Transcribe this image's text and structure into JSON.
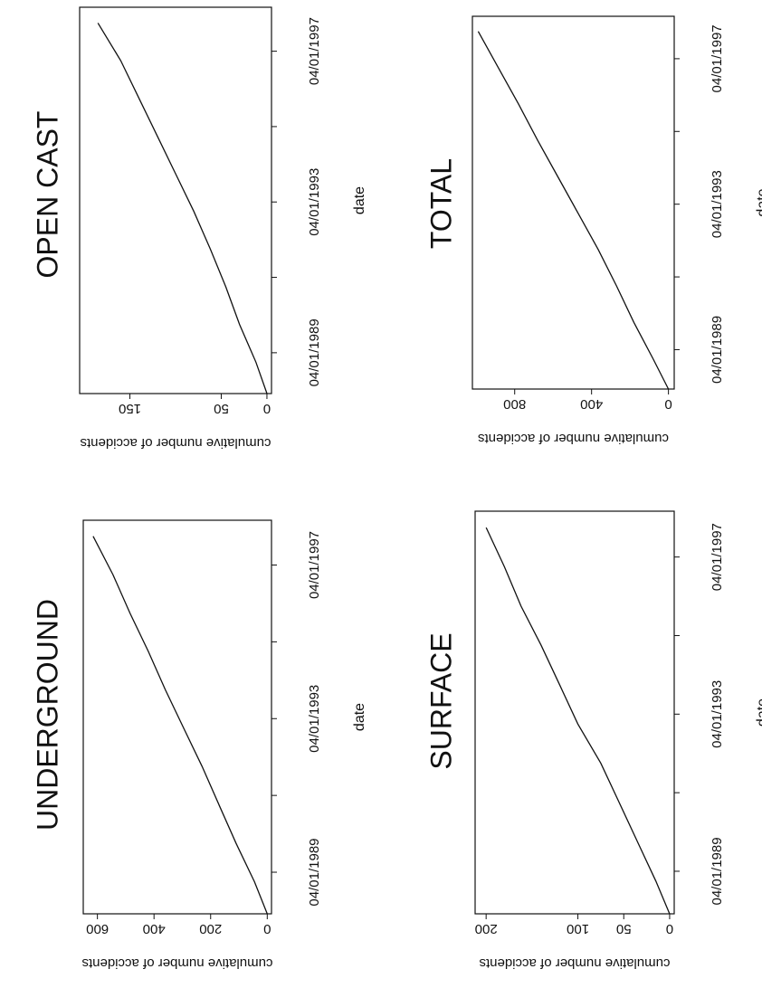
{
  "chart_data": [
    {
      "type": "line",
      "title": "UNDERGROUND",
      "xlabel": "date",
      "ylabel": "cumulative number of accidents",
      "x_ticks": [
        "04/01/1989",
        "04/01/1993",
        "04/01/1997"
      ],
      "y_ticks": [
        "0",
        "200",
        "400",
        "600"
      ],
      "xlim": [
        "1988-03",
        "1998-06"
      ],
      "ylim": [
        -15,
        650
      ],
      "series": [
        {
          "x": [
            "1988-03",
            "1989-01",
            "1990-01",
            "1991-01",
            "1992-01",
            "1993-01",
            "1994-01",
            "1995-01",
            "1996-01",
            "1997-01",
            "1998-01"
          ],
          "values": [
            0,
            45,
            110,
            170,
            230,
            295,
            360,
            420,
            485,
            545,
            615
          ]
        }
      ]
    },
    {
      "type": "line",
      "title": "OPEN CAST",
      "xlabel": "date",
      "ylabel": "cumulative number of accidents",
      "x_ticks": [
        "04/01/1989",
        "04/01/1993",
        "04/01/1997"
      ],
      "y_ticks": [
        "0",
        "50",
        "150"
      ],
      "xlim": [
        "1988-03",
        "1998-06"
      ],
      "ylim": [
        -5,
        205
      ],
      "series": [
        {
          "x": [
            "1988-03",
            "1989-01",
            "1990-01",
            "1991-01",
            "1992-01",
            "1993-01",
            "1994-01",
            "1995-01",
            "1996-01",
            "1997-01",
            "1998-01"
          ],
          "values": [
            0,
            12,
            30,
            45,
            62,
            80,
            100,
            120,
            140,
            160,
            185
          ]
        }
      ]
    },
    {
      "type": "line",
      "title": "SURFACE",
      "xlabel": "date",
      "ylabel": "cumulative number of accidents",
      "x_ticks": [
        "04/01/1989",
        "04/01/1993",
        "04/01/1997"
      ],
      "y_ticks": [
        "0",
        "50",
        "100",
        "200"
      ],
      "xlim": [
        "1988-03",
        "1998-06"
      ],
      "ylim": [
        -5,
        212
      ],
      "series": [
        {
          "x": [
            "1988-03",
            "1989-01",
            "1990-01",
            "1991-01",
            "1992-01",
            "1993-01",
            "1994-01",
            "1995-01",
            "1996-01",
            "1997-01",
            "1998-01"
          ],
          "values": [
            0,
            15,
            35,
            55,
            75,
            100,
            120,
            140,
            162,
            180,
            200
          ]
        }
      ]
    },
    {
      "type": "line",
      "title": "TOTAL",
      "xlabel": "date",
      "ylabel": "cumulative number of accidents",
      "x_ticks": [
        "04/01/1989",
        "04/01/1993",
        "04/01/1997"
      ],
      "y_ticks": [
        "0",
        "400",
        "800"
      ],
      "xlim": [
        "1988-03",
        "1998-06"
      ],
      "ylim": [
        -30,
        1020
      ],
      "series": [
        {
          "x": [
            "1988-03",
            "1989-01",
            "1990-01",
            "1991-01",
            "1992-01",
            "1993-01",
            "1994-01",
            "1995-01",
            "1996-01",
            "1997-01",
            "1998-01"
          ],
          "values": [
            0,
            80,
            180,
            270,
            365,
            470,
            575,
            680,
            780,
            885,
            990
          ]
        }
      ]
    }
  ]
}
